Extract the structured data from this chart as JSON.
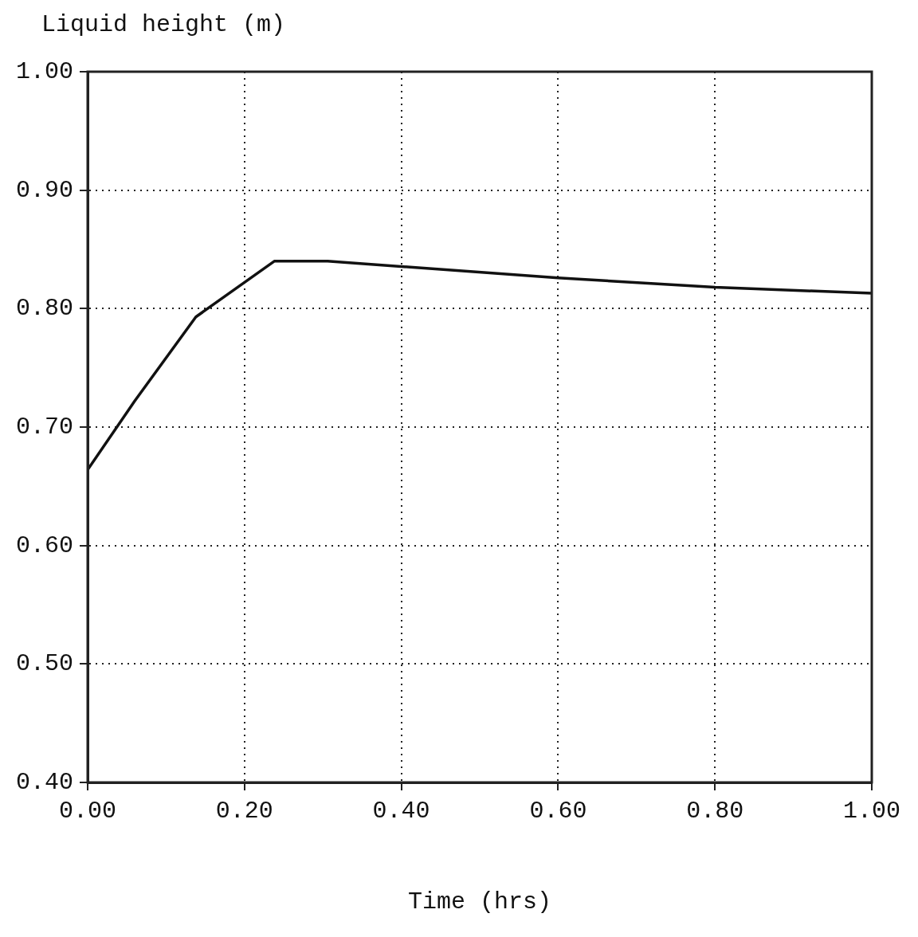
{
  "chart_data": {
    "type": "line",
    "xlabel": "Time (hrs)",
    "ylabel": "Liquid height (m)",
    "x": [
      0,
      0.06,
      0.138,
      0.238,
      0.306,
      0.6,
      0.8,
      1.0
    ],
    "series": [
      {
        "color": "#111111",
        "values": [
          0.664,
          0.722,
          0.793,
          0.84,
          0.84,
          0.826,
          0.818,
          0.813
        ]
      }
    ],
    "xlim": [
      0,
      1
    ],
    "xticks": [
      {
        "value": 0,
        "label": "0.00"
      },
      {
        "value": 0.2,
        "label": "0.20"
      },
      {
        "value": 0.4,
        "label": "0.40"
      },
      {
        "value": 0.6,
        "label": "0.60"
      },
      {
        "value": 0.8,
        "label": "0.80"
      },
      {
        "value": 1,
        "label": "1.00"
      }
    ],
    "ylim": [
      0.4,
      1
    ],
    "yticks": [
      {
        "value": 0.4,
        "label": "0.40"
      },
      {
        "value": 0.5,
        "label": "0.50"
      },
      {
        "value": 0.6,
        "label": "0.60"
      },
      {
        "value": 0.7,
        "label": "0.70"
      },
      {
        "value": 0.8,
        "label": "0.80"
      },
      {
        "value": 0.9,
        "label": "0.90"
      },
      {
        "value": 1,
        "label": "1.00"
      }
    ],
    "grid": true,
    "marker": "none",
    "line_style": "solid",
    "legend": false
  }
}
